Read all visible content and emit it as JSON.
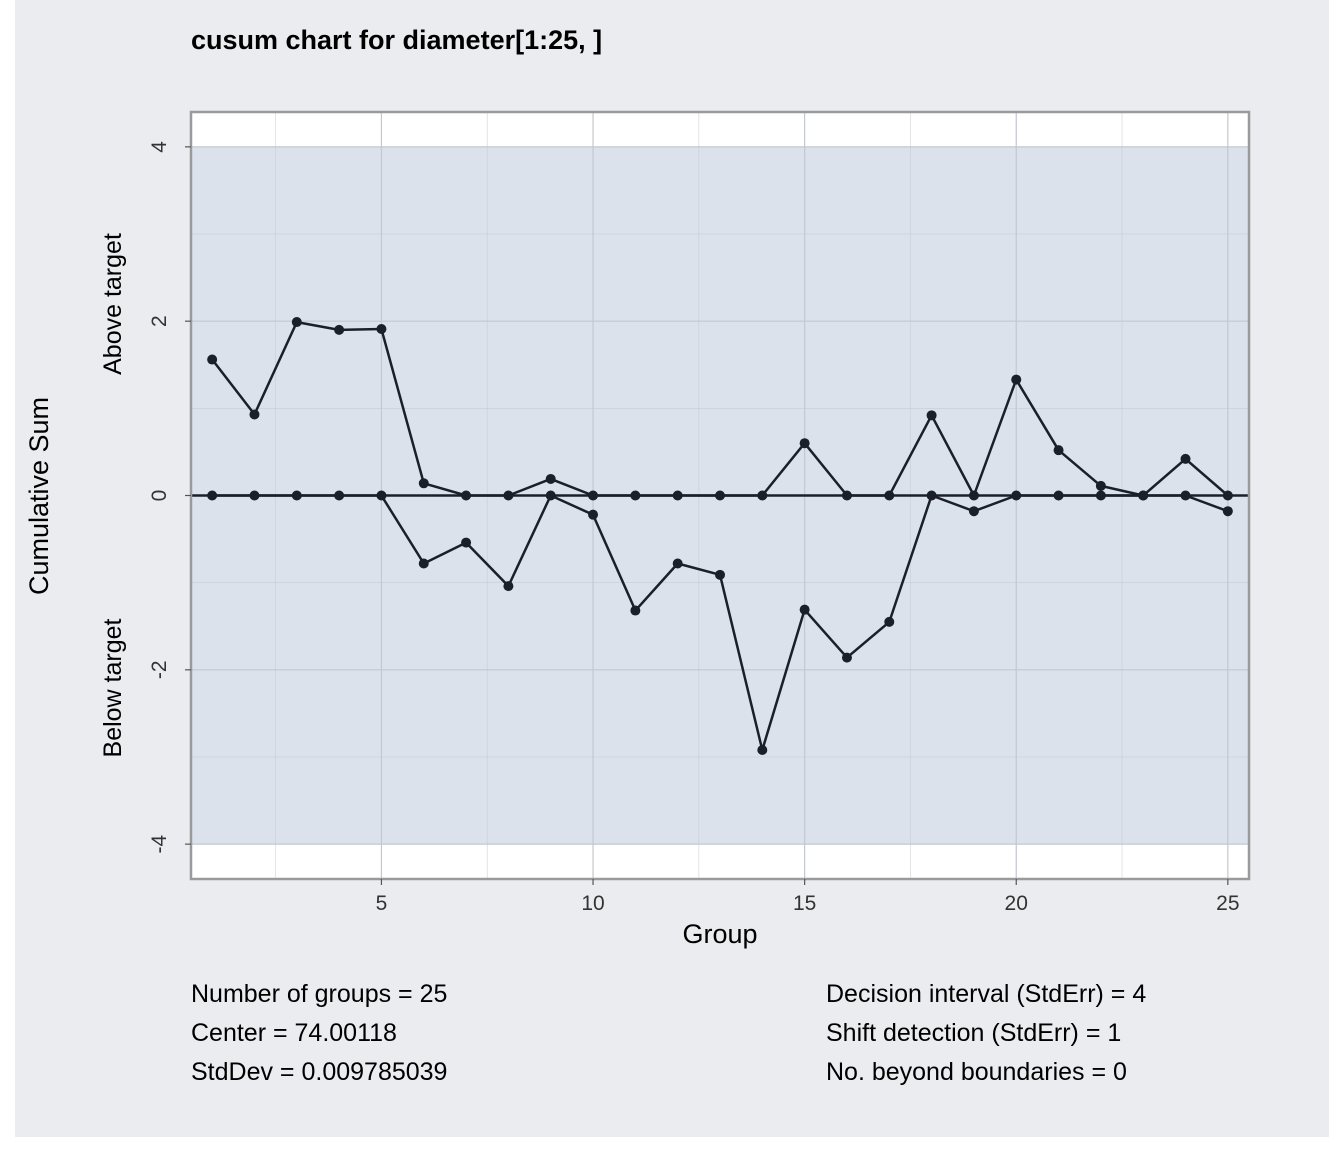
{
  "chart_data": {
    "type": "line",
    "title": "cusum chart for diameter[1:25, ]",
    "xlabel": "Group",
    "ylabel": "Cumulative Sum",
    "ylabel_upper": "Above target",
    "ylabel_lower": "Below target",
    "xlim": [
      0.5,
      25.5
    ],
    "ylim": [
      -4.4,
      4.4
    ],
    "x_ticks": [
      5,
      10,
      15,
      20,
      25
    ],
    "y_ticks": [
      -4,
      -2,
      0,
      2,
      4
    ],
    "grid": true,
    "decision_limits": [
      -4,
      4
    ],
    "center_line": 0,
    "x": [
      1,
      2,
      3,
      4,
      5,
      6,
      7,
      8,
      9,
      10,
      11,
      12,
      13,
      14,
      15,
      16,
      17,
      18,
      19,
      20,
      21,
      22,
      23,
      24,
      25
    ],
    "series": [
      {
        "values": [
          1.56,
          0.93,
          1.99,
          1.9,
          1.91,
          0.14,
          0,
          0,
          0.19,
          0,
          0,
          0,
          0,
          0,
          0.6,
          0,
          0,
          0.92,
          0,
          1.33,
          0.52,
          0.11,
          0,
          0.42,
          0
        ]
      },
      {
        "values": [
          0,
          0,
          0,
          0,
          0,
          -0.78,
          -0.54,
          -1.04,
          0,
          -0.22,
          -1.32,
          -0.78,
          -0.91,
          -2.92,
          -1.31,
          -1.86,
          -1.45,
          0,
          -0.18,
          0,
          0,
          0,
          0,
          0,
          -0.18
        ]
      }
    ],
    "colors": {
      "line": "#1b1f2a",
      "band": "#dce2ec",
      "plot_bg": "#ffffff",
      "grid": "#c3c8cf"
    }
  },
  "stats": {
    "left": [
      "Number of groups = 25",
      "Center = 74.00118",
      "StdDev = 0.009785039"
    ],
    "right": [
      "Decision interval (StdErr) = 4",
      "Shift detection (StdErr) = 1",
      "No. beyond boundaries = 0"
    ]
  }
}
